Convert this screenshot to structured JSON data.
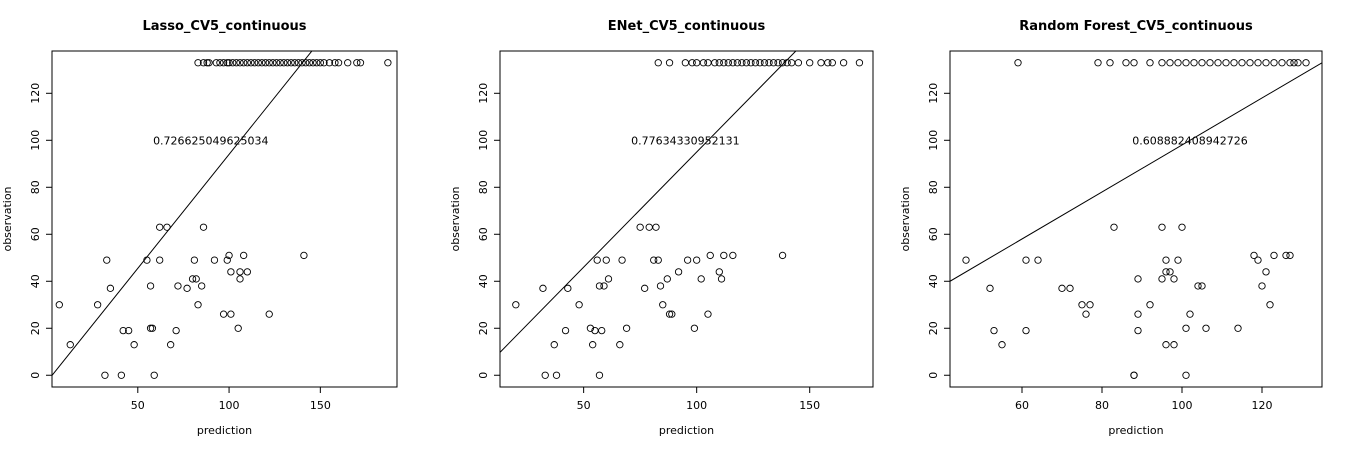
{
  "chart_data": [
    {
      "type": "scatter",
      "title": "Lasso_CV5_continuous",
      "xlabel": "prediction",
      "ylabel": "observation",
      "annotation": "0.726625049625034",
      "annotation_at": [
        90,
        100
      ],
      "xlim": [
        3,
        192
      ],
      "ylim": [
        -5,
        138
      ],
      "xticks": [
        50,
        100,
        150
      ],
      "yticks": [
        0,
        20,
        40,
        60,
        80,
        100,
        120
      ],
      "fit_line": {
        "slope": 0.97,
        "intercept": -3
      },
      "x": [
        7,
        13,
        28,
        32,
        33,
        35,
        41,
        42,
        45,
        48,
        55,
        57,
        57,
        58,
        59,
        62,
        62,
        66,
        68,
        71,
        72,
        77,
        80,
        81,
        82,
        83,
        85,
        86,
        92,
        97,
        99,
        100,
        101,
        101,
        105,
        106,
        106,
        108,
        110,
        122,
        141,
        83,
        86,
        88,
        89,
        93,
        95,
        97,
        99,
        100,
        102,
        104,
        106,
        108,
        110,
        112,
        114,
        116,
        118,
        120,
        122,
        124,
        126,
        128,
        130,
        132,
        134,
        136,
        138,
        140,
        142,
        144,
        146,
        148,
        150,
        152,
        155,
        158,
        160,
        165,
        170,
        172,
        187
      ],
      "y": [
        30,
        13,
        30,
        0,
        49,
        37,
        0,
        19,
        19,
        13,
        49,
        38,
        20,
        20,
        0,
        49,
        63,
        63,
        13,
        19,
        38,
        37,
        41,
        49,
        41,
        30,
        38,
        63,
        49,
        26,
        49,
        51,
        44,
        26,
        20,
        44,
        41,
        51,
        44,
        26,
        51,
        133,
        133,
        133,
        133,
        133,
        133,
        133,
        133,
        133,
        133,
        133,
        133,
        133,
        133,
        133,
        133,
        133,
        133,
        133,
        133,
        133,
        133,
        133,
        133,
        133,
        133,
        133,
        133,
        133,
        133,
        133,
        133,
        133,
        133,
        133,
        133,
        133,
        133,
        133,
        133,
        133,
        133
      ]
    },
    {
      "type": "scatter",
      "title": "ENet_CV5_continuous",
      "xlabel": "prediction",
      "ylabel": "observation",
      "annotation": "0.77634330952131",
      "annotation_at": [
        95,
        100
      ],
      "xlim": [
        13,
        178
      ],
      "ylim": [
        -5,
        138
      ],
      "xticks": [
        50,
        100,
        150
      ],
      "yticks": [
        0,
        20,
        40,
        60,
        80,
        100,
        120
      ],
      "fit_line": {
        "slope": 0.98,
        "intercept": -3
      },
      "x": [
        20,
        32,
        33,
        37,
        38,
        42,
        43,
        48,
        53,
        54,
        55,
        56,
        57,
        57,
        58,
        59,
        60,
        61,
        66,
        67,
        69,
        75,
        77,
        79,
        81,
        82,
        83,
        84,
        85,
        87,
        88,
        89,
        92,
        96,
        99,
        100,
        102,
        105,
        106,
        110,
        111,
        112,
        116,
        138,
        83,
        88,
        95,
        98,
        100,
        103,
        105,
        108,
        110,
        112,
        114,
        116,
        118,
        120,
        122,
        124,
        126,
        128,
        130,
        132,
        134,
        136,
        138,
        140,
        142,
        145,
        150,
        155,
        158,
        160,
        165,
        172
      ],
      "y": [
        30,
        37,
        0,
        13,
        0,
        19,
        37,
        30,
        20,
        13,
        19,
        49,
        38,
        0,
        19,
        38,
        49,
        41,
        13,
        49,
        20,
        63,
        37,
        63,
        49,
        63,
        49,
        38,
        30,
        41,
        26,
        26,
        44,
        49,
        20,
        49,
        41,
        26,
        51,
        44,
        41,
        51,
        51,
        51,
        133,
        133,
        133,
        133,
        133,
        133,
        133,
        133,
        133,
        133,
        133,
        133,
        133,
        133,
        133,
        133,
        133,
        133,
        133,
        133,
        133,
        133,
        133,
        133,
        133,
        133,
        133,
        133,
        133,
        133,
        133,
        133
      ]
    },
    {
      "type": "scatter",
      "title": "Random Forest_CV5_continuous",
      "xlabel": "prediction",
      "ylabel": "observation",
      "annotation": "0.608882408942726",
      "annotation_at": [
        102,
        100
      ],
      "xlim": [
        42,
        135
      ],
      "ylim": [
        -5,
        138
      ],
      "xticks": [
        60,
        80,
        100,
        120
      ],
      "yticks": [
        0,
        20,
        40,
        60,
        80,
        100,
        120
      ],
      "fit_line": {
        "slope": 1.0,
        "intercept": -2
      },
      "x": [
        46,
        52,
        53,
        55,
        61,
        61,
        64,
        70,
        72,
        75,
        76,
        77,
        83,
        88,
        88,
        89,
        89,
        89,
        92,
        95,
        95,
        96,
        96,
        96,
        97,
        98,
        98,
        99,
        100,
        101,
        101,
        102,
        104,
        105,
        106,
        114,
        118,
        119,
        120,
        121,
        122,
        123,
        126,
        127,
        128,
        59,
        79,
        82,
        86,
        88,
        92,
        95,
        97,
        99,
        101,
        103,
        105,
        107,
        109,
        111,
        113,
        115,
        117,
        119,
        121,
        123,
        125,
        127,
        129,
        131
      ],
      "y": [
        49,
        37,
        19,
        13,
        49,
        19,
        49,
        37,
        37,
        30,
        26,
        30,
        63,
        0,
        0,
        41,
        19,
        26,
        30,
        63,
        41,
        44,
        13,
        49,
        44,
        41,
        13,
        49,
        63,
        0,
        20,
        26,
        38,
        38,
        20,
        20,
        51,
        49,
        38,
        44,
        30,
        51,
        51,
        51,
        133,
        133,
        133,
        133,
        133,
        133,
        133,
        133,
        133,
        133,
        133,
        133,
        133,
        133,
        133,
        133,
        133,
        133,
        133,
        133,
        133,
        133,
        133,
        133,
        133,
        133
      ]
    }
  ]
}
